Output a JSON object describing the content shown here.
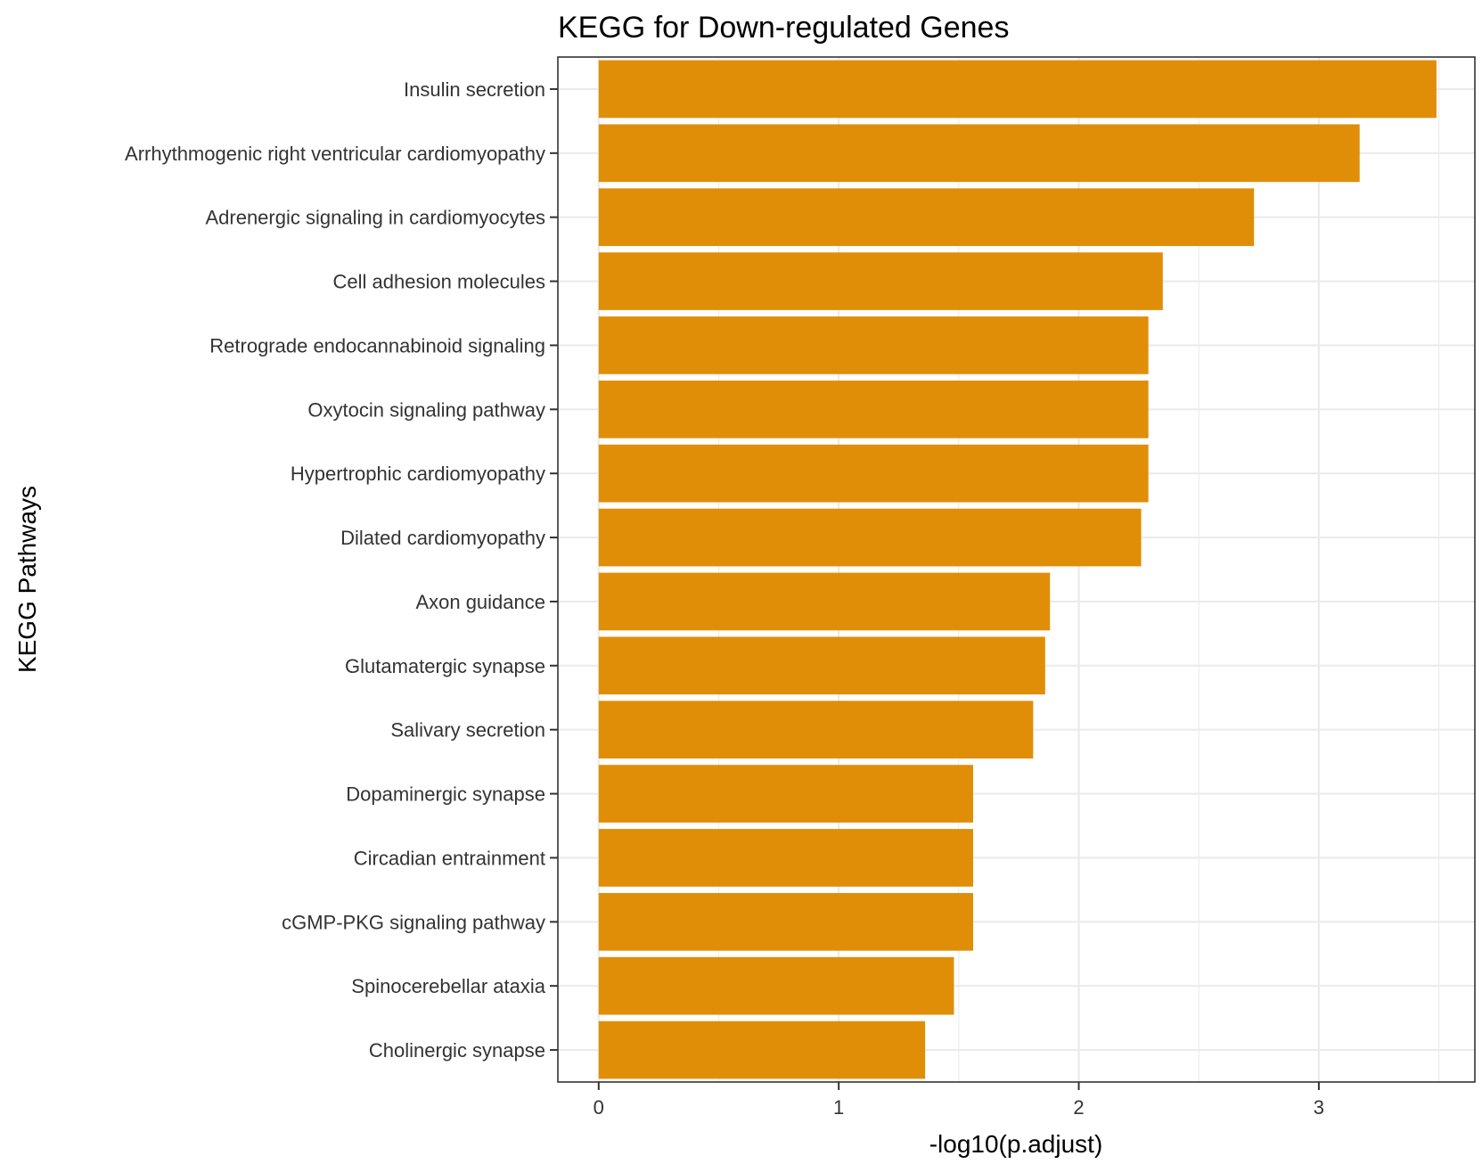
{
  "chart_data": {
    "type": "bar",
    "orientation": "horizontal",
    "title": "KEGG for Down-regulated Genes",
    "xlabel": "-log10(p.adjust)",
    "ylabel": "KEGG Pathways",
    "xlim": [
      -0.17,
      3.65
    ],
    "xticks": [
      0,
      1,
      2,
      3
    ],
    "xtick_labels": [
      "0",
      "1",
      "2",
      "3"
    ],
    "grid": true,
    "bar_color": "#E08E08",
    "categories": [
      "Insulin secretion",
      "Arrhythmogenic right ventricular cardiomyopathy",
      "Adrenergic signaling in cardiomyocytes",
      "Cell adhesion molecules",
      "Retrograde endocannabinoid signaling",
      "Oxytocin signaling pathway",
      "Hypertrophic cardiomyopathy",
      "Dilated cardiomyopathy",
      "Axon guidance",
      "Glutamatergic synapse",
      "Salivary secretion",
      "Dopaminergic synapse",
      "Circadian entrainment",
      "cGMP-PKG signaling pathway",
      "Spinocerebellar ataxia",
      "Cholinergic synapse"
    ],
    "values": [
      3.49,
      3.17,
      2.73,
      2.35,
      2.29,
      2.29,
      2.29,
      2.26,
      1.88,
      1.86,
      1.81,
      1.56,
      1.56,
      1.56,
      1.48,
      1.36
    ]
  }
}
